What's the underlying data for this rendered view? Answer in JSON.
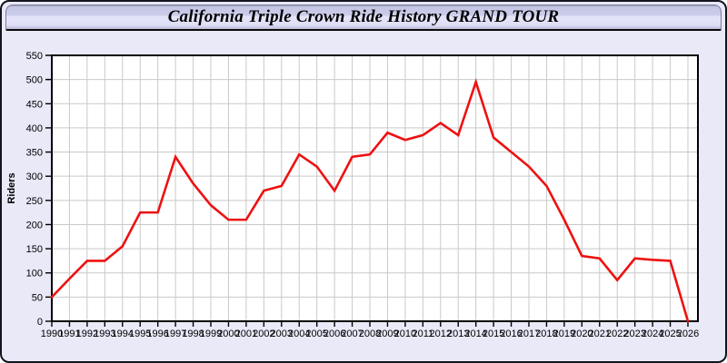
{
  "window": {
    "title": "California Triple Crown Ride History GRAND TOUR"
  },
  "colors": {
    "page_background": "#e9e9f8",
    "titlebar_gradient_light": "#e4e4fa",
    "titlebar_gradient_dark": "#b8b8d4",
    "window_border": "#141420",
    "line_red": "#ee1111",
    "grid_gray": "#c9c9c9",
    "plot_background": "#ffffff",
    "axis_black": "#000000"
  },
  "chart_data": {
    "type": "line",
    "title": "California Triple Crown Ride History GRAND TOUR",
    "xlabel": "",
    "ylabel": "Riders",
    "x": [
      1990,
      1991,
      1992,
      1993,
      1994,
      1995,
      1996,
      1997,
      1998,
      1999,
      2000,
      2001,
      2002,
      2003,
      2004,
      2005,
      2006,
      2007,
      2008,
      2009,
      2010,
      2011,
      2012,
      2013,
      2014,
      2015,
      2016,
      2017,
      2018,
      2019,
      2020,
      2021,
      2022,
      2023,
      2024,
      2025,
      2026
    ],
    "series": [
      {
        "name": "Riders",
        "color": "#ee1111",
        "values": [
          50,
          88,
          125,
          125,
          155,
          225,
          225,
          340,
          285,
          240,
          210,
          210,
          270,
          280,
          345,
          320,
          270,
          340,
          345,
          390,
          375,
          385,
          410,
          385,
          495,
          380,
          350,
          320,
          280,
          210,
          135,
          130,
          85,
          130,
          127,
          125,
          0
        ]
      }
    ],
    "ylim": [
      0,
      550
    ],
    "yticks": [
      0,
      50,
      100,
      150,
      200,
      250,
      300,
      350,
      400,
      450,
      500,
      550
    ],
    "grid": true,
    "legend_position": "none",
    "styles": {
      "line_width": 2.6,
      "grid_color": "#c9c9c9",
      "plot_bg": "#ffffff",
      "axis_color": "#000000",
      "tick_label_size": 11,
      "axis_title_size": 11
    }
  }
}
